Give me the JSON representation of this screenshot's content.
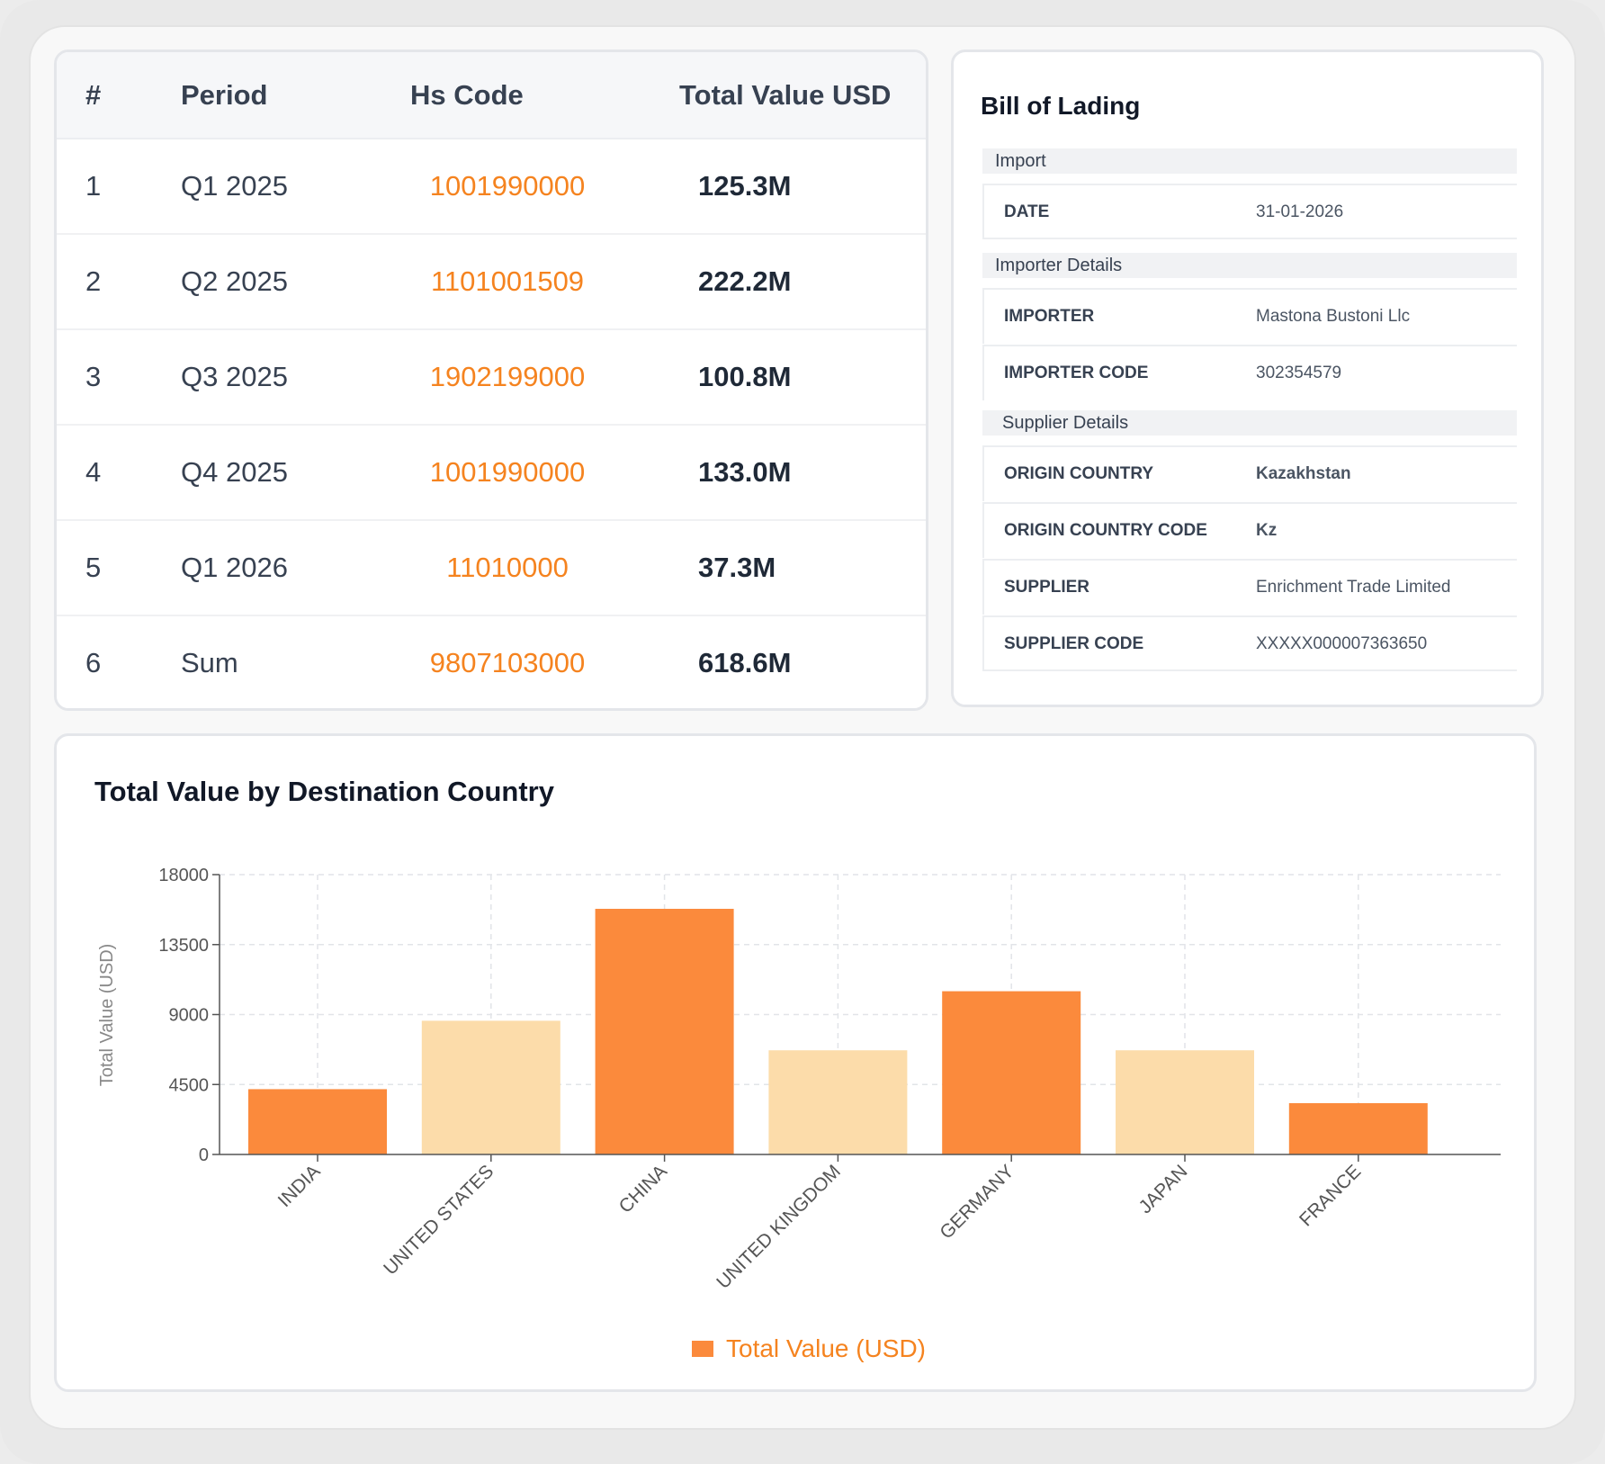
{
  "table": {
    "headers": {
      "num": "#",
      "period": "Period",
      "hs_code": "Hs Code",
      "total_value": "Total Value USD"
    },
    "rows": [
      {
        "num": "1",
        "period": "Q1 2025",
        "hs_code": "1001990000",
        "total_value": "125.3M"
      },
      {
        "num": "2",
        "period": "Q2 2025",
        "hs_code": "1101001509",
        "total_value": "222.2M"
      },
      {
        "num": "3",
        "period": "Q3 2025",
        "hs_code": "1902199000",
        "total_value": "100.8M"
      },
      {
        "num": "4",
        "period": "Q4 2025",
        "hs_code": "1001990000",
        "total_value": "133.0M"
      },
      {
        "num": "5",
        "period": "Q1 2026",
        "hs_code": "11010000",
        "total_value": "37.3M"
      },
      {
        "num": "6",
        "period": "Sum",
        "hs_code": "9807103000",
        "total_value": "618.6M"
      }
    ]
  },
  "bill_of_lading": {
    "title": "Bill of Lading",
    "sections": {
      "import": {
        "heading": "Import",
        "fields": [
          {
            "key": "DATE",
            "value": "31-01-2026"
          }
        ]
      },
      "importer": {
        "heading": "Importer Details",
        "fields": [
          {
            "key": "IMPORTER",
            "value": "Mastona Bustoni Llc"
          },
          {
            "key": "IMPORTER CODE",
            "value": "302354579"
          }
        ]
      },
      "supplier": {
        "heading": "Supplier Details",
        "fields": [
          {
            "key": "ORIGIN COUNTRY",
            "value": "Kazakhstan"
          },
          {
            "key": "ORIGIN COUNTRY CODE",
            "value": "Kz"
          },
          {
            "key": "SUPPLIER",
            "value": "Enrichment Trade Limited"
          },
          {
            "key": "SUPPLIER CODE",
            "value": "XXXXX000007363650"
          }
        ]
      }
    }
  },
  "chart_data": {
    "type": "bar",
    "title": "Total Value by Destination Country",
    "xlabel": "",
    "ylabel": "Total Value (USD)",
    "ylim": [
      0,
      18000
    ],
    "yticks": [
      0,
      4500,
      9000,
      13500,
      18000
    ],
    "categories": [
      "INDIA",
      "UNITED STATES",
      "CHINA",
      "UNITED KINGDOM",
      "GERMANY",
      "JAPAN",
      "FRANCE"
    ],
    "series": [
      {
        "name": "Total Value (USD)",
        "values": [
          4200,
          8600,
          15800,
          6700,
          10500,
          6700,
          3300
        ]
      }
    ],
    "bar_colors": [
      "#fb8a3c",
      "#fcdcaa",
      "#fb8a3c",
      "#fcdcaa",
      "#fb8a3c",
      "#fcdcaa",
      "#fb8a3c"
    ],
    "legend_color": "#fb8a3c",
    "legend_position": "bottom-center",
    "grid": true
  },
  "colors": {
    "accent": "#f5831f",
    "bar_dark": "#fb8a3c",
    "bar_light": "#fcdcaa"
  }
}
